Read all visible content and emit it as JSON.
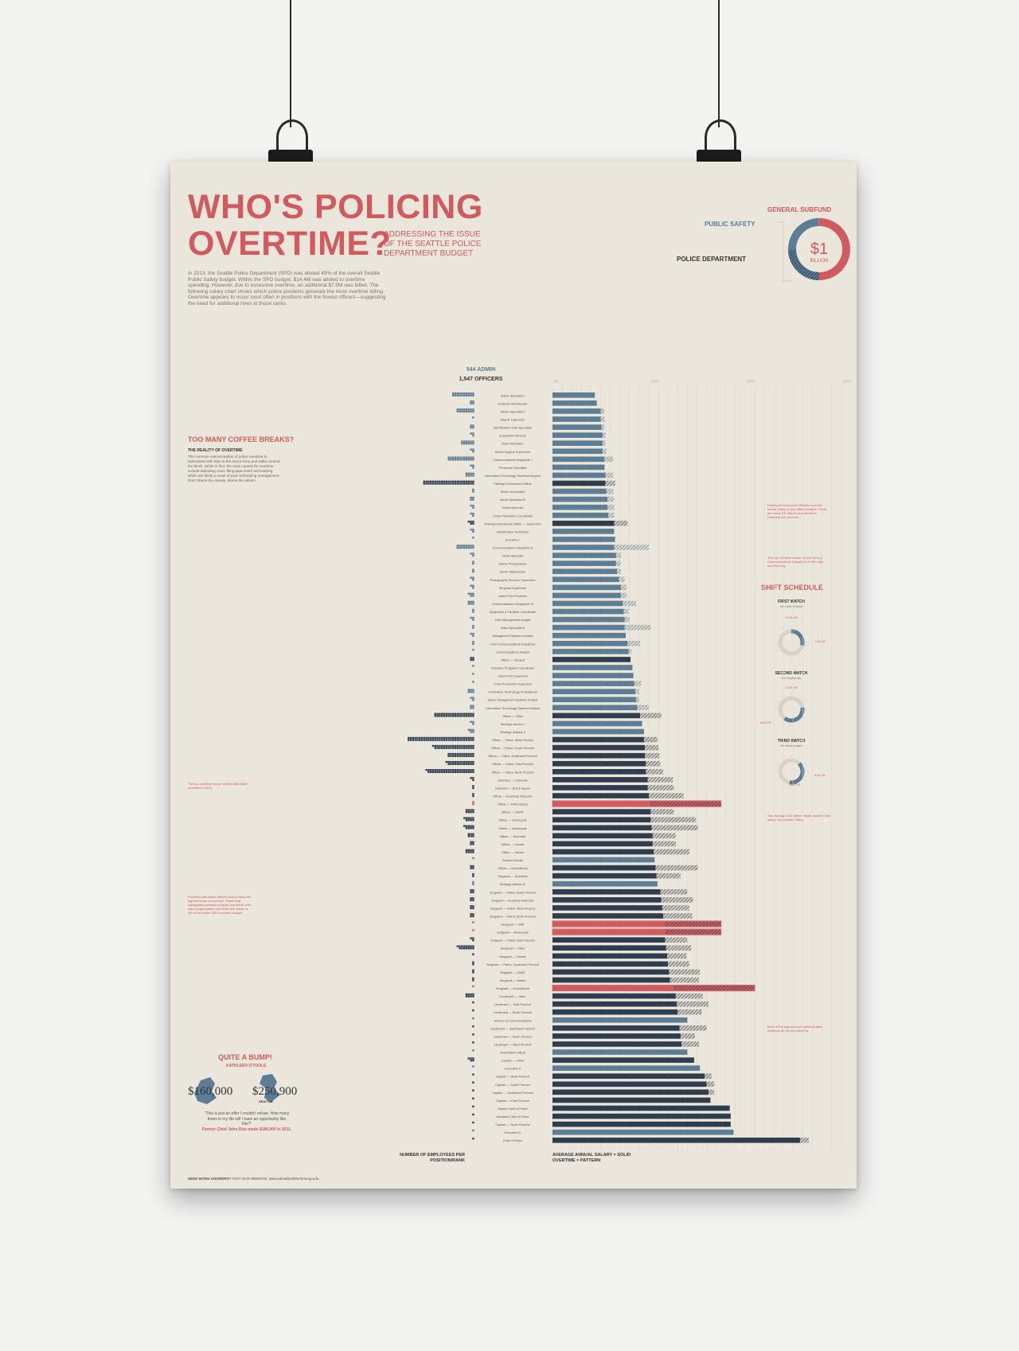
{
  "poster": {
    "title_line1": "WHO'S POLICING",
    "title_line2": "OVERTIME?",
    "subtitle": "ADDRESSING THE ISSUE OF THE SEATTLE POLICE DEPARTMENT BUDGET",
    "intro": "In 2013, the Seattle Police Department (SPD) was alloted 49% of the overall Seattle Public Safety budget. Within the SPD budget, $14.4M was alloted to overtime spending. However, due to excessive overtime, an additional $7.5M was billed. The following salary chart shows which police positions generate the most overtime billing. Overtime appears to occur most often in positions with the fewest officers—suggesting the need for additional hires at those ranks.",
    "footer_bold": "NEED MORE ANSWERS?",
    "footer_rest": "VISIT OUR WEBSITE: www.whoseboththemmeog.edu"
  },
  "budget_donut": {
    "label_general": "GENERAL SUBFUND",
    "label_public": "PUBLIC SAFETY",
    "label_police": "POLICE DEPARTMENT",
    "center_value": "$1",
    "center_unit": "BILLION",
    "general_fraction": 0.5,
    "public_safety_fraction": 0.5,
    "police_fraction": 0.245,
    "colors": {
      "general": "#d05a5e",
      "public": "#5c7d93",
      "police": "#2f3e4e"
    }
  },
  "headcount": {
    "admin": "544 ADMIN",
    "officers": "1,547 OFFICERS"
  },
  "axis_foot": {
    "left_line1": "NUMBER OF EMPLOYEES PER",
    "left_line2": "POSITION/RANK",
    "right_line1": "AVERAGE ANNUAL SALARY = SOLID",
    "right_line2": "OVERTIME = PATTERN"
  },
  "coffee": {
    "heading": "TOO MANY COFFEE BREAKS?",
    "sub": "THE REALITY OF OVERTIME",
    "text": "The common misconception of police overtime is associated with trips to the donut shop and walks around the block. While in fact, the main causes for overtime include attending court, filing paperwork and training, which are likely a result of poor scheduling management. Don't blame the donuts, blame the admin!"
  },
  "shift": {
    "heading": "SHIFT SCHEDULE",
    "watches": [
      {
        "title": "FIRST WATCH",
        "sub": "the crack of dawn",
        "start": "12:00 AM",
        "end": "7:00 AM"
      },
      {
        "title": "SECOND WATCH",
        "sub": "the longest day",
        "start": "11:00 AM",
        "end": "8:00 PM"
      },
      {
        "title": "THIRD WATCH",
        "sub": "the dead of night",
        "start": "3:00 PM",
        "end": "8:00 AM"
      }
    ]
  },
  "bump": {
    "heading": "QUITE A BUMP!",
    "name": "KATHLEEN O'TOOLE",
    "left_value": "$160,000",
    "right_value": "$250,900",
    "right_caption": "SEATTLE",
    "quote": "\"This is just an offer I couldn't refuse. How many times in my life will I have an opportunity like this?\"",
    "note": "Former Chief John Diaz made $180,000 in 2011."
  },
  "notes": {
    "parking": "Parking Enforcement Officers have the lowest salary of any officer position. There are many PE officers and therefore relatively low overtime.",
    "comm": "The top overtime earner on the list is a Communications Dispatcher II with high overtime pay.",
    "patrol": "The top overtime earner worked $56,985 in overtime in 2013.",
    "dwi": "The average DWI officer nearly doubled their salary via overtime billing.",
    "positions": "Positions with fewer officers tend to have the highest levels of overtime. Those that highlighted positions indicate one officer who was compensated over $150,000, which is 9% of the entire 2013 overtime budget.",
    "director": "Most of the highest-level administrative positions do not log overtime."
  },
  "chart_data": {
    "type": "bar",
    "title": "",
    "xlabel": "AVERAGE ANNUAL SALARY = SOLID / OVERTIME = PATTERN",
    "ylabel": "",
    "xlim": [
      0,
      300000
    ],
    "xticks": [
      "0K",
      "100K",
      "200K",
      "300K"
    ],
    "series": [
      {
        "name": "AVERAGE ANNUAL SALARY"
      },
      {
        "name": "OVERTIME"
      },
      {
        "name": "NUMBER OF EMPLOYEES"
      }
    ],
    "rows": [
      {
        "label": "Admin Specialist I",
        "salary": 44000,
        "overtime": 0,
        "count": 20,
        "kind": "admin"
      },
      {
        "label": "Evidence Warehouser",
        "salary": 46000,
        "overtime": 0,
        "count": 4,
        "kind": "admin"
      },
      {
        "label": "Admin Specialist II",
        "salary": 50000,
        "overtime": 4000,
        "count": 16,
        "kind": "admin"
      },
      {
        "label": "Payroll Supervisor",
        "salary": 50000,
        "overtime": 4000,
        "count": 1,
        "kind": "admin"
      },
      {
        "label": "Identification Data Specialist",
        "salary": 51000,
        "overtime": 3000,
        "count": 4,
        "kind": "admin"
      },
      {
        "label": "Equipment Services",
        "salary": 52000,
        "overtime": 3000,
        "count": 3,
        "kind": "admin"
      },
      {
        "label": "Data Technician",
        "salary": 52000,
        "overtime": 3000,
        "count": 12,
        "kind": "admin"
      },
      {
        "label": "Admin Support Supervisor",
        "salary": 52000,
        "overtime": 4000,
        "count": 3,
        "kind": "admin"
      },
      {
        "label": "Communications Dispatcher I",
        "salary": 54000,
        "overtime": 9000,
        "count": 24,
        "kind": "admin"
      },
      {
        "label": "Personnel Specialist",
        "salary": 54000,
        "overtime": 0,
        "count": 3,
        "kind": "admin"
      },
      {
        "label": "Information Technology Technical Support",
        "salary": 55000,
        "overtime": 8000,
        "count": 8,
        "kind": "admin"
      },
      {
        "label": "Parking Enforcement Officer",
        "salary": 55000,
        "overtime": 10000,
        "count": 46,
        "kind": "officer"
      },
      {
        "label": "Senior Accountant",
        "salary": 56000,
        "overtime": 7000,
        "count": 2,
        "kind": "admin"
      },
      {
        "label": "Admin Specialist III",
        "salary": 57000,
        "overtime": 7000,
        "count": 4,
        "kind": "admin"
      },
      {
        "label": "Victim Advocate",
        "salary": 57000,
        "overtime": 7000,
        "count": 3,
        "kind": "admin"
      },
      {
        "label": "Crime Prevention Coordinator",
        "salary": 58000,
        "overtime": 6000,
        "count": 3,
        "kind": "admin"
      },
      {
        "label": "Parking Enforcement Officer — Supervisor",
        "salary": 64000,
        "overtime": 14000,
        "count": 5,
        "kind": "officer"
      },
      {
        "label": "Identification Technician",
        "salary": 64000,
        "overtime": 0,
        "count": 3,
        "kind": "admin"
      },
      {
        "label": "Executive I",
        "salary": 65000,
        "overtime": 0,
        "count": 1,
        "kind": "admin"
      },
      {
        "label": "Communications Dispatcher II",
        "salary": 64000,
        "overtime": 36000,
        "count": 16,
        "kind": "admin"
      },
      {
        "label": "Victim Advocate",
        "salary": 66000,
        "overtime": 5000,
        "count": 3,
        "kind": "admin"
      },
      {
        "label": "Senior Photographer",
        "salary": 66000,
        "overtime": 5000,
        "count": 2,
        "kind": "admin"
      },
      {
        "label": "Senior Warehouser",
        "salary": 67000,
        "overtime": 4000,
        "count": 2,
        "kind": "admin"
      },
      {
        "label": "Photographic Services Supervisor",
        "salary": 69000,
        "overtime": 6000,
        "count": 3,
        "kind": "admin"
      },
      {
        "label": "Sergeant Supervisor",
        "salary": 71000,
        "overtime": 6000,
        "count": 3,
        "kind": "admin"
      },
      {
        "label": "Latent Print Examiner",
        "salary": 71000,
        "overtime": 6000,
        "count": 5,
        "kind": "admin"
      },
      {
        "label": "Communications Dispatcher III",
        "salary": 73000,
        "overtime": 14000,
        "count": 6,
        "kind": "admin"
      },
      {
        "label": "Equipment & Facilities Coordinator",
        "salary": 74000,
        "overtime": 5000,
        "count": 2,
        "kind": "admin"
      },
      {
        "label": "Fleet Management Analyst",
        "salary": 75000,
        "overtime": 5000,
        "count": 3,
        "kind": "admin"
      },
      {
        "label": "Video Specialist II",
        "salary": 75000,
        "overtime": 27000,
        "count": 2,
        "kind": "admin"
      },
      {
        "label": "Management Systems Analyst",
        "salary": 76000,
        "overtime": 0,
        "count": 3,
        "kind": "admin"
      },
      {
        "label": "Chief Communications Dispatcher",
        "salary": 78000,
        "overtime": 13000,
        "count": 2,
        "kind": "admin"
      },
      {
        "label": "Communications Analyst",
        "salary": 79000,
        "overtime": 3000,
        "count": 1,
        "kind": "admin"
      },
      {
        "label": "Officer — Student",
        "salary": 81000,
        "overtime": 0,
        "count": 4,
        "kind": "officer"
      },
      {
        "label": "Volunteer Programs Coordinator",
        "salary": 83000,
        "overtime": 0,
        "count": 1,
        "kind": "admin"
      },
      {
        "label": "Latent Print Supervisor",
        "salary": 84000,
        "overtime": 0,
        "count": 1,
        "kind": "admin"
      },
      {
        "label": "Crime Prevention Supervisor",
        "salary": 85000,
        "overtime": 7000,
        "count": 1,
        "kind": "admin"
      },
      {
        "label": "Information Technology Professional",
        "salary": 86000,
        "overtime": 4000,
        "count": 6,
        "kind": "admin"
      },
      {
        "label": "Senior Management Systems Analyst",
        "salary": 87000,
        "overtime": 3000,
        "count": 3,
        "kind": "admin"
      },
      {
        "label": "Information Technology Systems Analyst",
        "salary": 88000,
        "overtime": 12000,
        "count": 4,
        "kind": "admin"
      },
      {
        "label": "Officer — Other",
        "salary": 91000,
        "overtime": 22000,
        "count": 36,
        "kind": "officer"
      },
      {
        "label": "Strategic Advisor I",
        "salary": 93000,
        "overtime": 0,
        "count": 3,
        "kind": "admin"
      },
      {
        "label": "Strategic Advisor II",
        "salary": 95000,
        "overtime": 0,
        "count": 5,
        "kind": "admin"
      },
      {
        "label": "Officer — Patrol, West Precinct",
        "salary": 95000,
        "overtime": 14000,
        "count": 60,
        "kind": "officer"
      },
      {
        "label": "Officer — Patrol, South Precinct",
        "salary": 96000,
        "overtime": 14000,
        "count": 37,
        "kind": "officer"
      },
      {
        "label": "Officer — Patrol, Southwest Precinct",
        "salary": 96000,
        "overtime": 15000,
        "count": 24,
        "kind": "officer"
      },
      {
        "label": "Officer — Patrol, East Precinct",
        "salary": 97000,
        "overtime": 15000,
        "count": 25,
        "kind": "officer"
      },
      {
        "label": "Officer — Patrol, North Precinct",
        "salary": 97000,
        "overtime": 18000,
        "count": 43,
        "kind": "officer"
      },
      {
        "label": "Detective — Homicide",
        "salary": 99000,
        "overtime": 26000,
        "count": 3,
        "kind": "officer"
      },
      {
        "label": "Detective — Bomb Squad",
        "salary": 99000,
        "overtime": 27000,
        "count": 2,
        "kind": "officer"
      },
      {
        "label": "Officer — Academy Instructor",
        "salary": 100000,
        "overtime": 36000,
        "count": 2,
        "kind": "officer"
      },
      {
        "label": "Officer — DWI Enforce",
        "salary": 101000,
        "overtime": 74000,
        "count": 2,
        "kind": "officer",
        "highlight": true
      },
      {
        "label": "Officer — SWAT",
        "salary": 102000,
        "overtime": 24000,
        "count": 8,
        "kind": "officer"
      },
      {
        "label": "Officer — Motorcycle",
        "salary": 102000,
        "overtime": 47000,
        "count": 9,
        "kind": "officer"
      },
      {
        "label": "Officer — Motorcycle",
        "salary": 103000,
        "overtime": 48000,
        "count": 9,
        "kind": "officer"
      },
      {
        "label": "Officer — Homicide",
        "salary": 104000,
        "overtime": 24000,
        "count": 6,
        "kind": "officer"
      },
      {
        "label": "Officer — Canine",
        "salary": 104000,
        "overtime": 24000,
        "count": 4,
        "kind": "officer"
      },
      {
        "label": "Officer — Harbor",
        "salary": 105000,
        "overtime": 37000,
        "count": 8,
        "kind": "officer"
      },
      {
        "label": "Civilian Director",
        "salary": 106000,
        "overtime": 0,
        "count": 1,
        "kind": "admin"
      },
      {
        "label": "Officer — Arson/Bomb",
        "salary": 107000,
        "overtime": 44000,
        "count": 4,
        "kind": "officer"
      },
      {
        "label": "Sergeant — Homicide",
        "salary": 108000,
        "overtime": 25000,
        "count": 2,
        "kind": "officer"
      },
      {
        "label": "Strategic Advisor III",
        "salary": 109000,
        "overtime": 0,
        "count": 2,
        "kind": "admin"
      },
      {
        "label": "Sergeant — Patrol, South Precinct",
        "salary": 112000,
        "overtime": 28000,
        "count": 4,
        "kind": "officer"
      },
      {
        "label": "Sergeant — Academy Instructor",
        "salary": 113000,
        "overtime": 33000,
        "count": 4,
        "kind": "officer"
      },
      {
        "label": "Sergeant — Patrol, West Precinct",
        "salary": 114000,
        "overtime": 28000,
        "count": 4,
        "kind": "officer"
      },
      {
        "label": "Sergeant — Patrol, North Precinct",
        "salary": 115000,
        "overtime": 30000,
        "count": 4,
        "kind": "officer"
      },
      {
        "label": "Sergeant — DWI",
        "salary": 116000,
        "overtime": 59000,
        "count": 1,
        "kind": "officer",
        "highlight": true
      },
      {
        "label": "Sergeant — Motorcycle",
        "salary": 117000,
        "overtime": 58000,
        "count": 1,
        "kind": "officer",
        "highlight": true
      },
      {
        "label": "Sergeant — Patrol, East Precinct",
        "salary": 117000,
        "overtime": 23000,
        "count": 3,
        "kind": "officer"
      },
      {
        "label": "Sergeant — Other",
        "salary": 118000,
        "overtime": 26000,
        "count": 15,
        "kind": "officer"
      },
      {
        "label": "Sergeant — Canine",
        "salary": 119000,
        "overtime": 20000,
        "count": 1,
        "kind": "officer"
      },
      {
        "label": "Sergeant — Patrol, Southwest Precinct",
        "salary": 120000,
        "overtime": 22000,
        "count": 2,
        "kind": "officer"
      },
      {
        "label": "Sergeant — SWAT",
        "salary": 121000,
        "overtime": 32000,
        "count": 2,
        "kind": "officer"
      },
      {
        "label": "Sergeant — Harbor",
        "salary": 122000,
        "overtime": 30000,
        "count": 2,
        "kind": "officer"
      },
      {
        "label": "Sergeant — Arson/Bomb",
        "salary": 125000,
        "overtime": 85000,
        "count": 1,
        "kind": "officer",
        "highlight": true
      },
      {
        "label": "Lieutenant — Other",
        "salary": 128000,
        "overtime": 28000,
        "count": 8,
        "kind": "officer"
      },
      {
        "label": "Lieutenant — East Precinct",
        "salary": 129000,
        "overtime": 33000,
        "count": 1,
        "kind": "officer"
      },
      {
        "label": "Lieutenant — North Precinct",
        "salary": 130000,
        "overtime": 25000,
        "count": 1,
        "kind": "officer"
      },
      {
        "label": "Director of Communications",
        "salary": 140000,
        "overtime": 0,
        "count": 1,
        "kind": "admin"
      },
      {
        "label": "Lieutenant — Southwest Precinct",
        "salary": 132000,
        "overtime": 28000,
        "count": 1,
        "kind": "officer"
      },
      {
        "label": "Lieutenant — South Precinct",
        "salary": 133000,
        "overtime": 15000,
        "count": 1,
        "kind": "officer"
      },
      {
        "label": "Lieutenant — West Precinct",
        "salary": 134000,
        "overtime": 18000,
        "count": 1,
        "kind": "officer"
      },
      {
        "label": "Chief Admin Officer",
        "salary": 140000,
        "overtime": 0,
        "count": 1,
        "kind": "admin"
      },
      {
        "label": "Captain — Other",
        "salary": 147000,
        "overtime": 0,
        "count": 5,
        "kind": "officer"
      },
      {
        "label": "Executive II",
        "salary": 153000,
        "overtime": 0,
        "count": 1,
        "kind": "admin"
      },
      {
        "label": "Captain — West Precinct",
        "salary": 158000,
        "overtime": 7000,
        "count": 1,
        "kind": "officer"
      },
      {
        "label": "Captain — South Precinct",
        "salary": 160000,
        "overtime": 8000,
        "count": 1,
        "kind": "officer"
      },
      {
        "label": "Captain — Southwest Precinct",
        "salary": 162000,
        "overtime": 6000,
        "count": 1,
        "kind": "officer"
      },
      {
        "label": "Captain — East Precinct",
        "salary": 164000,
        "overtime": 0,
        "count": 1,
        "kind": "officer"
      },
      {
        "label": "Deputy Chief of Police",
        "salary": 184000,
        "overtime": 0,
        "count": 1,
        "kind": "officer"
      },
      {
        "label": "Assistant Chief of Police",
        "salary": 185000,
        "overtime": 0,
        "count": 1,
        "kind": "officer"
      },
      {
        "label": "Captain — North Precinct",
        "salary": 185000,
        "overtime": 0,
        "count": 1,
        "kind": "officer"
      },
      {
        "label": "Executive IV",
        "salary": 188000,
        "overtime": 0,
        "count": 1,
        "kind": "admin"
      },
      {
        "label": "Chief of Police",
        "salary": 257000,
        "overtime": 9000,
        "count": 1,
        "kind": "officer"
      }
    ]
  }
}
